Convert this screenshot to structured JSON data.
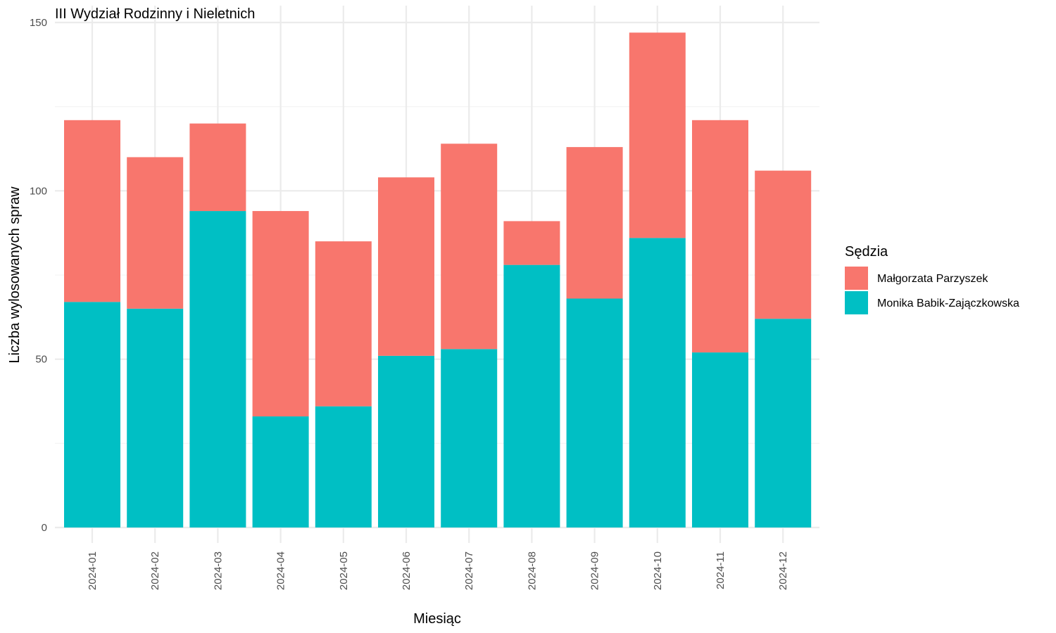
{
  "chart_data": {
    "type": "bar",
    "stacked": true,
    "title": "III Wydział Rodzinny i Nieletnich",
    "xlabel": "Miesiąc",
    "ylabel": "Liczba wylosowanych spraw",
    "ylim": [
      0,
      150
    ],
    "yticks": [
      0,
      50,
      100,
      150
    ],
    "grid": true,
    "legend": {
      "title": "Sędzia",
      "position": "right"
    },
    "categories": [
      "2024-01",
      "2024-02",
      "2024-03",
      "2024-04",
      "2024-05",
      "2024-06",
      "2024-07",
      "2024-08",
      "2024-09",
      "2024-10",
      "2024-11",
      "2024-12"
    ],
    "series": [
      {
        "name": "Monika Babik-Zajączkowska",
        "color": "#00BFC4",
        "values": [
          67,
          65,
          94,
          33,
          36,
          51,
          53,
          78,
          68,
          86,
          52,
          62
        ]
      },
      {
        "name": "Małgorzata Parzyszek",
        "color": "#F8766D",
        "values": [
          54,
          45,
          26,
          61,
          49,
          53,
          61,
          13,
          45,
          61,
          69,
          44
        ]
      }
    ],
    "legend_order": [
      "Małgorzata Parzyszek",
      "Monika Babik-Zajączkowska"
    ]
  }
}
